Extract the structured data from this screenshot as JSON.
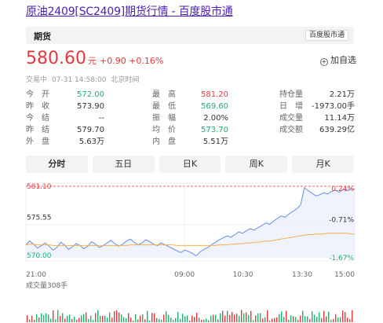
{
  "title": "原油2409[SC2409]期货行情 - 百度股市通",
  "tab_label": "期货",
  "brand_badge": "百度股市通",
  "price": "580.60",
  "unit": "元",
  "change": "+0.90 +0.16%",
  "add_watch": "加自选",
  "status": {
    "state": "交易中",
    "time": "07-31 14:58:00",
    "tz": "北京时间"
  },
  "stats_col1": [
    {
      "label": "今　开",
      "value": "572.00",
      "color": "green"
    },
    {
      "label": "昨　收",
      "value": "573.90",
      "color": "dark"
    },
    {
      "label": "今　结",
      "value": "--",
      "color": "dark"
    },
    {
      "label": "昨　结",
      "value": "579.70",
      "color": "dark"
    },
    {
      "label": "外　盘",
      "value": "5.63万",
      "color": "dark"
    }
  ],
  "stats_col2": [
    {
      "label": "最　高",
      "value": "581.20",
      "color": "red"
    },
    {
      "label": "最　低",
      "value": "569.60",
      "color": "green"
    },
    {
      "label": "振　幅",
      "value": "2.00%",
      "color": "dark"
    },
    {
      "label": "均　价",
      "value": "573.70",
      "color": "green"
    },
    {
      "label": "内　盘",
      "value": "5.51万",
      "color": "dark"
    }
  ],
  "stats_col3": [
    {
      "label": "持仓量",
      "value": "2.21万",
      "color": "dark"
    },
    {
      "label": "日　增",
      "value": "-1973.00手",
      "color": "dark"
    },
    {
      "label": "成交量",
      "value": "11.14万",
      "color": "dark"
    },
    {
      "label": "成交额",
      "value": "639.29亿",
      "color": "dark"
    }
  ],
  "period_tabs": [
    "分时",
    "五日",
    "日K",
    "周K",
    "月K"
  ],
  "chart_data": {
    "type": "line",
    "y_left_ticks": [
      "581.10",
      "575.55",
      "570.00"
    ],
    "y_right_ticks": [
      "0.24%",
      "-0.71%",
      "-1.67%"
    ],
    "x_ticks": [
      "21:00",
      "09:00",
      "10:30",
      "13:30",
      "15:00"
    ],
    "ylim": [
      570.0,
      581.1
    ],
    "volume_label": "成交量308手",
    "series": [
      {
        "values": [
          572.0,
          572.6,
          572.1,
          571.5,
          571.9,
          572.3,
          571.8,
          571.2,
          571.6,
          572.4,
          572.0,
          571.3,
          571.7,
          572.2,
          571.9,
          571.4,
          571.8,
          572.5,
          572.1,
          571.6,
          571.9,
          572.3,
          572.7,
          572.2,
          571.8,
          572.1,
          572.6,
          572.9,
          572.4,
          572.0,
          572.3,
          572.8,
          572.5,
          572.1,
          571.9,
          572.3,
          572.0,
          571.7,
          571.4,
          571.1,
          570.8,
          571.2,
          571.0,
          570.7,
          570.3,
          570.9,
          571.3,
          571.6,
          572.0,
          572.4,
          572.8,
          573.1,
          573.4,
          573.2,
          573.6,
          574.0,
          573.8,
          574.2,
          574.5,
          574.3,
          574.7,
          575.0,
          575.4,
          575.2,
          575.7,
          576.1,
          576.5,
          576.3,
          576.8,
          577.2,
          577.6,
          578.2,
          580.9,
          580.4,
          580.0,
          579.6,
          579.8,
          580.1,
          579.9,
          580.3,
          580.5,
          580.2,
          580.6,
          580.4,
          580.8,
          580.6
        ]
      },
      {
        "values": [
          572.0,
          572.1,
          572.1,
          572.0,
          572.0,
          572.0,
          572.0,
          571.9,
          571.9,
          571.9,
          571.9,
          571.9,
          571.9,
          571.9,
          571.9,
          571.9,
          571.9,
          571.9,
          571.9,
          571.9,
          571.9,
          571.9,
          571.9,
          571.9,
          571.9,
          571.9,
          571.9,
          572.0,
          572.0,
          572.0,
          572.0,
          572.0,
          572.0,
          572.0,
          572.0,
          572.0,
          572.0,
          572.0,
          572.0,
          571.9,
          571.9,
          571.9,
          571.9,
          571.9,
          571.9,
          571.9,
          571.9,
          571.9,
          571.9,
          571.9,
          572.0,
          572.0,
          572.0,
          572.1,
          572.1,
          572.2,
          572.2,
          572.3,
          572.3,
          572.4,
          572.4,
          572.5,
          572.6,
          572.6,
          572.7,
          572.8,
          572.9,
          573.0,
          573.1,
          573.2,
          573.3,
          573.4,
          573.5,
          573.6,
          573.6,
          573.7,
          573.7,
          573.7,
          573.8,
          573.8,
          573.8,
          573.8,
          573.8,
          573.8,
          573.7,
          573.7
        ]
      }
    ]
  }
}
